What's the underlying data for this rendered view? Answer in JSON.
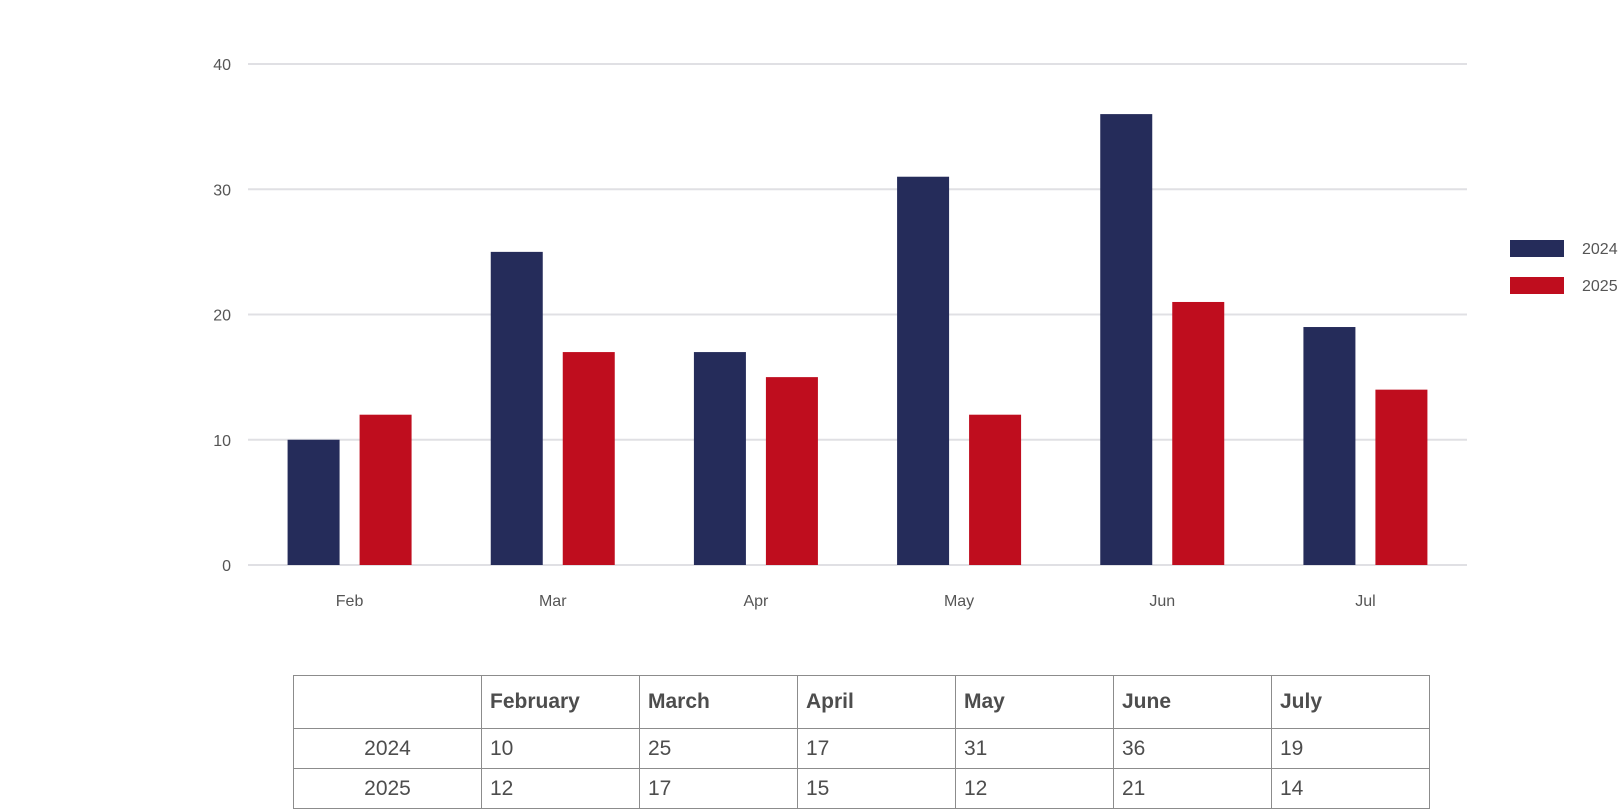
{
  "chart_data": {
    "type": "bar",
    "categories": [
      "Feb",
      "Mar",
      "Apr",
      "May",
      "Jun",
      "Jul"
    ],
    "series": [
      {
        "name": "2024",
        "values": [
          10,
          25,
          17,
          31,
          36,
          19
        ],
        "color": "#252c5a"
      },
      {
        "name": "2025",
        "values": [
          12,
          17,
          15,
          12,
          21,
          14
        ],
        "color": "#bf0d1e"
      }
    ],
    "ylim": [
      0,
      40
    ],
    "yticks": [
      0,
      10,
      20,
      30,
      40
    ],
    "grid": true,
    "legend": "right"
  },
  "table": {
    "columns": [
      "February",
      "March",
      "April",
      "May",
      "June",
      "July"
    ],
    "rows": [
      {
        "label": "2024",
        "values": [
          "10",
          "25",
          "17",
          "31",
          "36",
          "19"
        ]
      },
      {
        "label": "2025",
        "values": [
          "12",
          "17",
          "15",
          "12",
          "21",
          "14"
        ]
      }
    ]
  }
}
